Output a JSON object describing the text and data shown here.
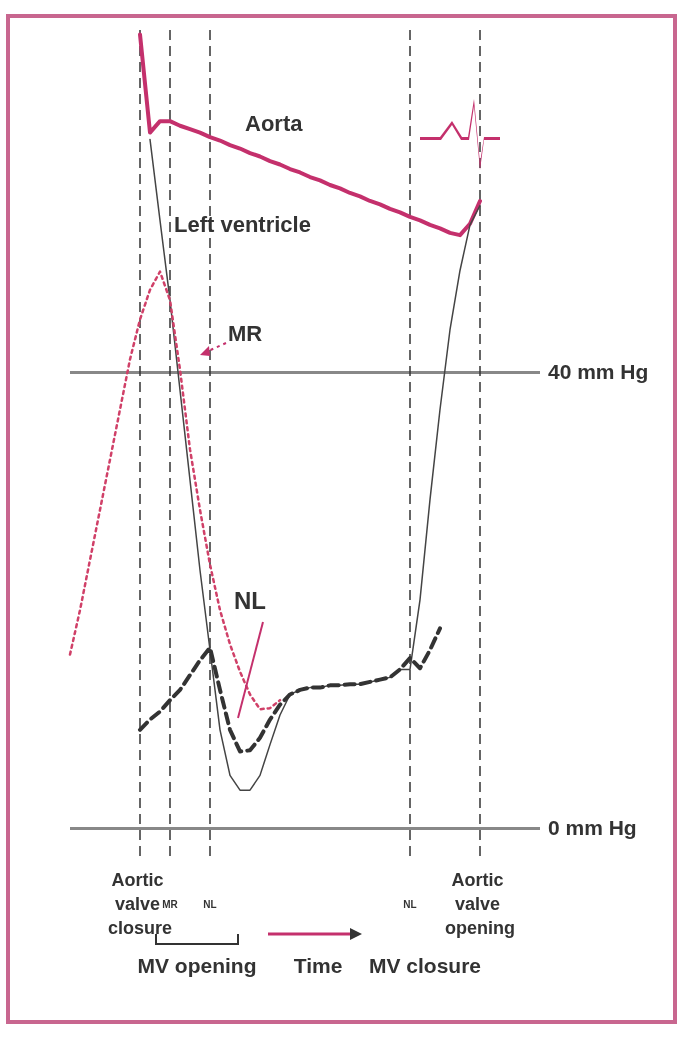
{
  "chart_data": {
    "type": "line",
    "categories": [
      null,
      null,
      null,
      null,
      null,
      null,
      null,
      "Aortic valve closure",
      null,
      null,
      "MR",
      null,
      null,
      null,
      "NL",
      null,
      null,
      null,
      null,
      null,
      null,
      null,
      null,
      null,
      null,
      null,
      null,
      null,
      null,
      null,
      null,
      null,
      null,
      null,
      "NL",
      null,
      null,
      null,
      null,
      null,
      null,
      "Aortic valve opening",
      null,
      null,
      null,
      null,
      null,
      null
    ],
    "ylim": [
      -3,
      70
    ],
    "yticks": [
      {
        "value": 0,
        "label": "0 mm Hg"
      },
      {
        "value": 40,
        "label": "40 mm Hg"
      }
    ],
    "grid": true,
    "marker": "none",
    "series": [
      {
        "name": "Aorta",
        "color": "#c4306c",
        "line_style": "solid",
        "values": [
          null,
          null,
          null,
          null,
          null,
          null,
          null,
          69.6,
          61,
          62,
          62,
          61.6,
          61.3,
          61,
          60.6,
          60.3,
          59.9,
          59.6,
          59.2,
          58.9,
          58.5,
          58.2,
          57.8,
          57.5,
          57.1,
          56.8,
          56.4,
          56.1,
          55.7,
          55.4,
          55,
          54.7,
          54.3,
          54,
          53.6,
          53.3,
          52.9,
          52.6,
          52.2,
          52,
          53,
          55,
          null,
          null,
          null,
          null,
          null,
          null
        ]
      },
      {
        "name": "Left ventricle",
        "color": "#444444",
        "line_style": "solid",
        "values": [
          null,
          null,
          null,
          null,
          null,
          null,
          null,
          null,
          60.4,
          53.3,
          46.3,
          38.4,
          30.5,
          22.6,
          15.6,
          8.6,
          4.6,
          3.3,
          3.3,
          4.6,
          7.3,
          9.9,
          11.7,
          12.1,
          12.3,
          12.3,
          12.5,
          12.5,
          12.6,
          12.6,
          12.8,
          13,
          13.2,
          13.9,
          13.9,
          20,
          28.8,
          36.7,
          43.7,
          48.9,
          52.9,
          54.6,
          null,
          null,
          null,
          null,
          null,
          null
        ]
      },
      {
        "name": "MR",
        "color": "#d04068",
        "line_style": "dotted",
        "values": [
          15.2,
          19.1,
          23.5,
          27.9,
          32.3,
          36.7,
          41.1,
          44.6,
          47.2,
          48.8,
          46.3,
          40.2,
          33.2,
          27.9,
          23.1,
          19.1,
          16.1,
          13.7,
          11.7,
          10.4,
          10.5,
          11.2,
          null,
          null,
          null,
          null,
          null,
          null,
          null,
          null,
          null,
          null,
          null,
          null,
          null,
          null,
          null,
          null,
          null,
          null,
          null,
          null,
          null,
          null,
          null,
          null,
          null,
          null
        ]
      },
      {
        "color": "#333333",
        "line_style": "dashed",
        "values": [
          null,
          null,
          null,
          null,
          null,
          null,
          null,
          8.6,
          9.5,
          10.2,
          11.2,
          12.1,
          13.4,
          14.7,
          15.8,
          12.1,
          8.6,
          6.7,
          6.8,
          7.9,
          9.5,
          10.8,
          11.7,
          12.1,
          12.3,
          12.3,
          12.5,
          12.5,
          12.6,
          12.6,
          12.8,
          13,
          13.2,
          13.9,
          14.9,
          14,
          15.6,
          17.5,
          null,
          null,
          null,
          null,
          null,
          null,
          null,
          null,
          null,
          null
        ]
      }
    ],
    "annotations": [
      "NL",
      "MV opening",
      "Time",
      "MV closure"
    ]
  }
}
